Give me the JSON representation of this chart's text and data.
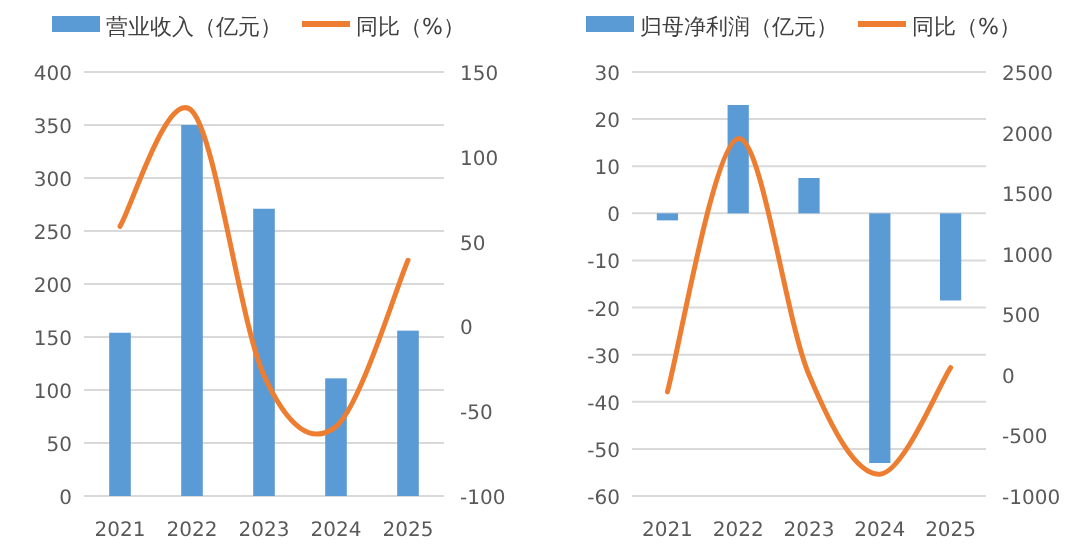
{
  "chart_data": [
    {
      "type": "bar",
      "categories": [
        "2021",
        "2022",
        "2023",
        "2024",
        "2025"
      ],
      "series": [
        {
          "name": "营业收入（亿元）",
          "color": "#5b9bd5",
          "values": [
            154,
            350,
            271,
            111,
            156
          ]
        },
        {
          "name": "同比（%）",
          "type": "line",
          "axis": "y2",
          "color": "#ed7d31",
          "values": [
            59,
            127,
            -29,
            -59,
            39
          ]
        }
      ],
      "ylim": [
        0,
        400
      ],
      "yticks": [
        0,
        50,
        100,
        150,
        200,
        250,
        300,
        350,
        400
      ],
      "y2lim": [
        -100,
        150
      ],
      "y2ticks": [
        -100,
        -50,
        0,
        50,
        100,
        150
      ],
      "grid": "y",
      "legend": "top",
      "marker": "none",
      "line_style": "solid"
    },
    {
      "type": "bar",
      "categories": [
        "2021",
        "2022",
        "2023",
        "2024",
        "2025"
      ],
      "series": [
        {
          "name": "归母净利润（亿元）",
          "color": "#5b9bd5",
          "values": [
            -1.5,
            23,
            7.5,
            -53,
            -18.5
          ]
        },
        {
          "name": "同比（%）",
          "type": "line",
          "axis": "y2",
          "color": "#ed7d31",
          "values": [
            -140,
            1950,
            0,
            -820,
            60
          ]
        }
      ],
      "ylim": [
        -60,
        30
      ],
      "yticks": [
        -60,
        -50,
        -40,
        -30,
        -20,
        -10,
        0,
        10,
        20,
        30
      ],
      "y2lim": [
        -1000,
        2500
      ],
      "y2ticks": [
        -1000,
        -500,
        0,
        500,
        1000,
        1500,
        2000,
        2500
      ],
      "grid": "y",
      "legend": "top",
      "marker": "none",
      "line_style": "solid"
    }
  ]
}
